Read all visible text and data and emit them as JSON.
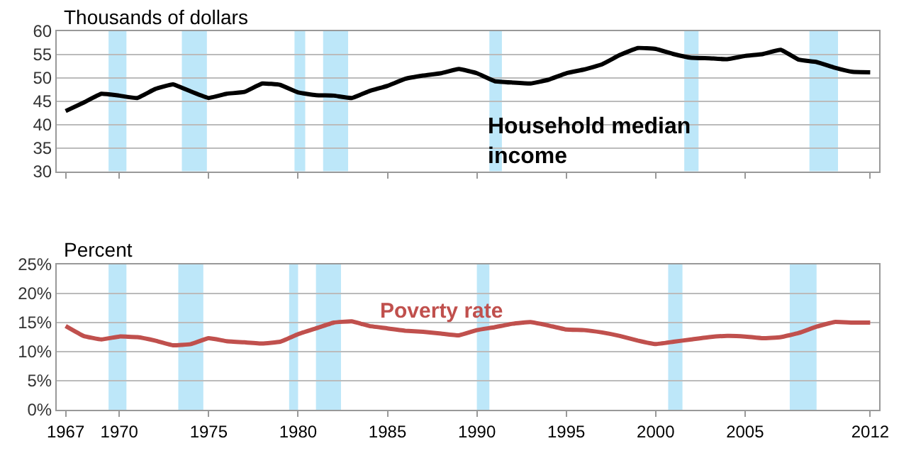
{
  "chart_data": [
    {
      "type": "line",
      "ylabel": "Thousands of dollars",
      "x": [
        1967,
        1968,
        1969,
        1970,
        1971,
        1972,
        1973,
        1974,
        1975,
        1976,
        1977,
        1978,
        1979,
        1980,
        1981,
        1982,
        1983,
        1984,
        1985,
        1986,
        1987,
        1988,
        1989,
        1990,
        1991,
        1992,
        1993,
        1994,
        1995,
        1996,
        1997,
        1998,
        1999,
        2000,
        2001,
        2002,
        2003,
        2004,
        2005,
        2006,
        2007,
        2008,
        2009,
        2010,
        2011,
        2012
      ],
      "series": [
        {
          "name": "Household median income",
          "color": "#000000",
          "values": [
            42.9,
            44.7,
            46.6,
            46.2,
            45.7,
            47.6,
            48.6,
            47.1,
            45.7,
            46.6,
            47.0,
            48.8,
            48.5,
            46.9,
            46.3,
            46.2,
            45.7,
            47.2,
            48.3,
            49.8,
            50.5,
            51.0,
            51.9,
            51.0,
            49.3,
            49.0,
            48.8,
            49.6,
            51.0,
            51.8,
            52.9,
            54.9,
            56.4,
            56.2,
            55.1,
            54.3,
            54.2,
            54.0,
            54.7,
            55.1,
            56.0,
            53.9,
            53.4,
            52.2,
            51.3,
            51.2
          ]
        }
      ],
      "xlim": [
        1966.5,
        2012.5
      ],
      "xticks": [
        1967,
        1970,
        1975,
        1980,
        1985,
        1990,
        1995,
        2000,
        2005,
        2012
      ],
      "ylim": [
        30,
        60
      ],
      "yticks": [
        30,
        35,
        40,
        45,
        50,
        55,
        60
      ],
      "grid": "y",
      "tick_labels": "y",
      "bands": [
        {
          "axis": "x",
          "from": 1969.4,
          "to": 1970.4,
          "color": "#bde7f9"
        },
        {
          "axis": "x",
          "from": 1973.5,
          "to": 1974.9,
          "color": "#bde7f9"
        },
        {
          "axis": "x",
          "from": 1979.8,
          "to": 1980.4,
          "color": "#bde7f9"
        },
        {
          "axis": "x",
          "from": 1981.4,
          "to": 1982.8,
          "color": "#bde7f9"
        },
        {
          "axis": "x",
          "from": 1990.7,
          "to": 1991.4,
          "color": "#bde7f9"
        },
        {
          "axis": "x",
          "from": 2001.6,
          "to": 2002.4,
          "color": "#bde7f9"
        },
        {
          "axis": "x",
          "from": 2008.6,
          "to": 2010.2,
          "color": "#bde7f9"
        }
      ]
    },
    {
      "type": "line",
      "ylabel": "Percent",
      "x": [
        1967,
        1968,
        1969,
        1970,
        1971,
        1972,
        1973,
        1974,
        1975,
        1976,
        1977,
        1978,
        1979,
        1980,
        1981,
        1982,
        1983,
        1984,
        1985,
        1986,
        1987,
        1988,
        1989,
        1990,
        1991,
        1992,
        1993,
        1994,
        1995,
        1996,
        1997,
        1998,
        1999,
        2000,
        2001,
        2002,
        2003,
        2004,
        2005,
        2006,
        2007,
        2008,
        2009,
        2010,
        2011,
        2012
      ],
      "series": [
        {
          "name": "Poverty rate",
          "color": "#c0504d",
          "values": [
            14.4,
            12.7,
            12.1,
            12.6,
            12.5,
            11.9,
            11.1,
            11.3,
            12.3,
            11.8,
            11.6,
            11.4,
            11.7,
            13.0,
            14.0,
            15.0,
            15.2,
            14.4,
            14.0,
            13.6,
            13.4,
            13.1,
            12.8,
            13.7,
            14.2,
            14.8,
            15.1,
            14.5,
            13.8,
            13.7,
            13.3,
            12.7,
            11.9,
            11.3,
            11.7,
            12.1,
            12.5,
            12.7,
            12.6,
            12.3,
            12.5,
            13.2,
            14.3,
            15.1,
            15.0,
            15.0
          ]
        }
      ],
      "xlim": [
        1966.5,
        2012.5
      ],
      "xticks": [
        1967,
        1970,
        1975,
        1980,
        1985,
        1990,
        1995,
        2000,
        2005,
        2012
      ],
      "ylim": [
        0,
        25
      ],
      "yticks": [
        {
          "value": 0,
          "label": "0%"
        },
        {
          "value": 5,
          "label": "5%"
        },
        {
          "value": 10,
          "label": "10%"
        },
        {
          "value": 15,
          "label": "15%"
        },
        {
          "value": 20,
          "label": "20%"
        },
        {
          "value": 25,
          "label": "25%"
        }
      ],
      "grid": "y",
      "bands": [
        {
          "axis": "x",
          "from": 1969.4,
          "to": 1970.4,
          "color": "#bde7f9"
        },
        {
          "axis": "x",
          "from": 1973.3,
          "to": 1974.7,
          "color": "#bde7f9"
        },
        {
          "axis": "x",
          "from": 1979.5,
          "to": 1980.0,
          "color": "#bde7f9"
        },
        {
          "axis": "x",
          "from": 1981.0,
          "to": 1982.4,
          "color": "#bde7f9"
        },
        {
          "axis": "x",
          "from": 1990.0,
          "to": 1990.7,
          "color": "#bde7f9"
        },
        {
          "axis": "x",
          "from": 2000.7,
          "to": 2001.5,
          "color": "#bde7f9"
        },
        {
          "axis": "x",
          "from": 2007.5,
          "to": 2009.0,
          "color": "#bde7f9"
        }
      ]
    }
  ]
}
